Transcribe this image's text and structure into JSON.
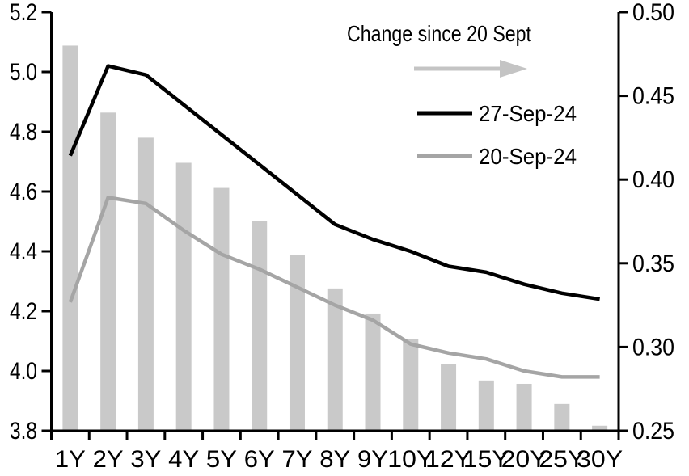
{
  "chart_data": {
    "type": "bar",
    "subtype": "dual-axis bar + two lines",
    "categories": [
      "1Y",
      "2Y",
      "3Y",
      "4Y",
      "5Y",
      "6Y",
      "7Y",
      "8Y",
      "9Y",
      "10Y",
      "12Y",
      "15Y",
      "20Y",
      "25Y",
      "30Y"
    ],
    "series": [
      {
        "name": "Change since 20 Sept",
        "type": "bar",
        "axis": "right",
        "color": "#c9c9c9",
        "values": [
          0.48,
          0.44,
          0.425,
          0.41,
          0.395,
          0.375,
          0.355,
          0.335,
          0.32,
          0.305,
          0.29,
          0.28,
          0.278,
          0.266,
          0.253
        ]
      },
      {
        "name": "27-Sep-24",
        "type": "line",
        "axis": "left",
        "color": "#000000",
        "values": [
          4.72,
          5.02,
          4.99,
          4.89,
          4.79,
          4.69,
          4.59,
          4.49,
          4.44,
          4.4,
          4.35,
          4.33,
          4.29,
          4.26,
          4.24
        ]
      },
      {
        "name": "20-Sep-24",
        "type": "line",
        "axis": "left",
        "color": "#a5a5a5",
        "values": [
          4.23,
          4.58,
          4.56,
          4.47,
          4.39,
          4.34,
          4.28,
          4.22,
          4.17,
          4.09,
          4.06,
          4.04,
          4.0,
          3.98,
          3.98
        ]
      }
    ],
    "left_axis": {
      "min": 3.8,
      "max": 5.2,
      "step": 0.2,
      "tick_labels": [
        "3.8",
        "4.0",
        "4.2",
        "4.4",
        "4.6",
        "4.8",
        "5.0",
        "5.2"
      ]
    },
    "right_axis": {
      "min": 0.25,
      "max": 0.5,
      "step": 0.05,
      "tick_labels": [
        "0.25",
        "0.30",
        "0.35",
        "0.40",
        "0.45",
        "0.50"
      ]
    },
    "grid": false,
    "legend_position": "top-right-inside",
    "legend": {
      "bar_label": "Change since 20 Sept",
      "arrow_icon_color": "#c4c4c4",
      "line1_label": "27-Sep-24",
      "line2_label": "20-Sep-24"
    }
  }
}
